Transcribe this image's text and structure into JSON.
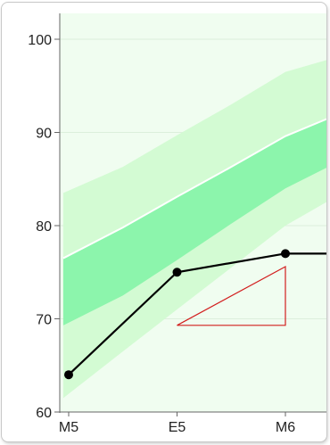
{
  "chart_data": {
    "type": "line",
    "title": "",
    "xlabel": "",
    "ylabel": "",
    "categories": [
      "M5",
      "E5",
      "M6"
    ],
    "ylim": [
      60,
      101
    ],
    "y_ticks": [
      60,
      70,
      80,
      90,
      100
    ],
    "grid": true,
    "colors": {
      "plot_background": "#f0fdf0",
      "outer_band": "#d3fbd3",
      "inner_band": "#8cf5ac",
      "median_line": "#ffffff",
      "series_line": "#000000",
      "marker": "#000000",
      "triangle": "#d21e1e",
      "axis": "#666666",
      "grid": "#dcefdc"
    },
    "band_x": [
      -0.05,
      0.5,
      1.0,
      1.5,
      2.0,
      2.6
    ],
    "outer_band": {
      "lower": [
        61.5,
        66.5,
        71.0,
        75.5,
        80.0,
        84.0
      ],
      "upper": [
        83.5,
        86.3,
        89.7,
        93.0,
        96.5,
        98.5
      ]
    },
    "inner_band": {
      "lower": [
        69.3,
        72.5,
        76.3,
        80.2,
        84.0,
        87.5
      ],
      "upper": [
        76.5,
        79.8,
        83.1,
        86.3,
        89.6,
        92.5
      ]
    },
    "median": {
      "values": [
        76.5,
        79.8,
        83.1,
        86.3,
        89.6,
        92.5
      ]
    },
    "series": [
      {
        "x": [
          0,
          1,
          2,
          2.6
        ],
        "values": [
          64,
          75,
          77,
          77
        ],
        "markers": [
          true,
          true,
          true,
          false
        ]
      }
    ],
    "annotation_triangle": {
      "points": [
        [
          1.0,
          69.3
        ],
        [
          2.0,
          75.6
        ],
        [
          2.0,
          69.3
        ]
      ]
    }
  }
}
